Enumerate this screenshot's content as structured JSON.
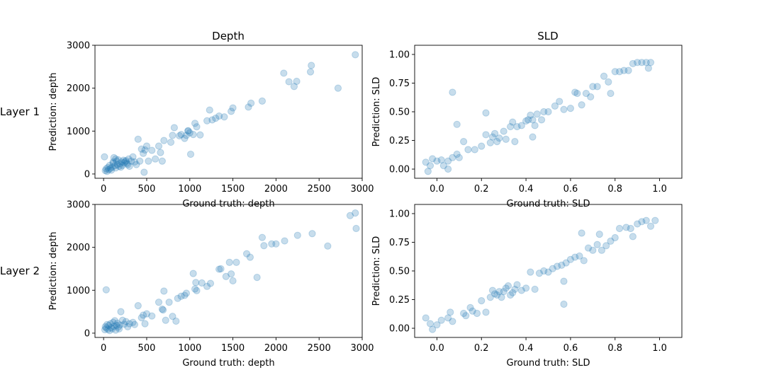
{
  "figure": {
    "column_titles": [
      "Depth",
      "SLD"
    ],
    "row_labels": [
      "Layer 1",
      "Layer 2"
    ],
    "point_color": "#1f77b4"
  },
  "chart_data": [
    {
      "type": "scatter",
      "row": 0,
      "col": 0,
      "title": "Depth",
      "xlabel": "Ground truth: depth",
      "ylabel": "Prediction: depth",
      "xlim": [
        -100,
        3000
      ],
      "ylim": [
        -100,
        3000
      ],
      "xticks": [
        0,
        500,
        1000,
        1500,
        2000,
        2500,
        3000
      ],
      "yticks": [
        0,
        1000,
        2000,
        3000
      ],
      "x": [
        20,
        30,
        40,
        50,
        60,
        70,
        80,
        90,
        100,
        110,
        120,
        130,
        140,
        150,
        160,
        170,
        180,
        190,
        200,
        210,
        220,
        230,
        240,
        250,
        260,
        270,
        280,
        290,
        300,
        320,
        340,
        360,
        380,
        400,
        420,
        440,
        460,
        480,
        500,
        520,
        560,
        600,
        640,
        660,
        680,
        700,
        780,
        800,
        820,
        880,
        900,
        940,
        960,
        980,
        1000,
        1040,
        1060,
        1080,
        1120,
        1200,
        1230,
        1260,
        1300,
        1340,
        1400,
        1480,
        1500,
        1680,
        1710,
        1840,
        2090,
        2150,
        2210,
        2240,
        2400,
        2410,
        2720,
        2920,
        10,
        110,
        140,
        980,
        1010,
        470
      ],
      "y": [
        80,
        120,
        60,
        150,
        100,
        200,
        130,
        90,
        160,
        250,
        380,
        190,
        140,
        300,
        220,
        330,
        180,
        240,
        160,
        280,
        200,
        320,
        260,
        290,
        310,
        250,
        220,
        350,
        180,
        300,
        400,
        280,
        220,
        810,
        300,
        580,
        480,
        560,
        650,
        300,
        550,
        350,
        650,
        500,
        300,
        780,
        740,
        900,
        1080,
        890,
        920,
        830,
        900,
        1000,
        960,
        920,
        1180,
        1100,
        910,
        1240,
        1490,
        1260,
        1300,
        1350,
        1330,
        1460,
        1540,
        1560,
        1650,
        1700,
        2350,
        2150,
        2040,
        2160,
        2380,
        2530,
        2000,
        2780,
        400,
        280,
        350,
        1010,
        460,
        40
      ]
    },
    {
      "type": "scatter",
      "row": 0,
      "col": 1,
      "title": "SLD",
      "xlabel": "Ground truth: SLD",
      "ylabel": "Prediction: SLD",
      "xlim": [
        -0.1,
        1.1
      ],
      "ylim": [
        -0.08,
        1.08
      ],
      "xticks": [
        0.0,
        0.2,
        0.4,
        0.6,
        0.8,
        1.0
      ],
      "yticks": [
        0.0,
        0.25,
        0.5,
        0.75,
        1.0
      ],
      "x": [
        -0.05,
        -0.04,
        -0.03,
        -0.02,
        0.0,
        0.02,
        0.03,
        0.05,
        0.07,
        0.09,
        0.1,
        0.12,
        0.14,
        0.17,
        0.2,
        0.22,
        0.24,
        0.25,
        0.26,
        0.27,
        0.28,
        0.3,
        0.31,
        0.33,
        0.34,
        0.35,
        0.36,
        0.38,
        0.4,
        0.41,
        0.42,
        0.43,
        0.44,
        0.45,
        0.47,
        0.48,
        0.5,
        0.53,
        0.55,
        0.57,
        0.6,
        0.62,
        0.63,
        0.65,
        0.67,
        0.69,
        0.7,
        0.72,
        0.75,
        0.77,
        0.78,
        0.8,
        0.82,
        0.84,
        0.86,
        0.88,
        0.9,
        0.92,
        0.94,
        0.95,
        0.96,
        0.07,
        0.09,
        0.22,
        0.43,
        0.05
      ],
      "y": [
        0.06,
        -0.02,
        0.03,
        0.09,
        0.07,
        0.08,
        0.03,
        0.07,
        0.1,
        0.13,
        0.1,
        0.24,
        0.17,
        0.17,
        0.2,
        0.3,
        0.23,
        0.28,
        0.31,
        0.24,
        0.27,
        0.33,
        0.26,
        0.37,
        0.41,
        0.24,
        0.37,
        0.38,
        0.42,
        0.43,
        0.47,
        0.43,
        0.38,
        0.48,
        0.43,
        0.5,
        0.5,
        0.55,
        0.59,
        0.52,
        0.53,
        0.67,
        0.66,
        0.56,
        0.66,
        0.63,
        0.72,
        0.72,
        0.81,
        0.76,
        0.66,
        0.85,
        0.85,
        0.86,
        0.86,
        0.92,
        0.93,
        0.93,
        0.93,
        0.88,
        0.93,
        0.67,
        0.39,
        0.49,
        0.28,
        0.0
      ]
    },
    {
      "type": "scatter",
      "row": 1,
      "col": 0,
      "title": "",
      "xlabel": "Ground truth: depth",
      "ylabel": "Prediction: depth",
      "xlim": [
        -100,
        3000
      ],
      "ylim": [
        -100,
        3000
      ],
      "xticks": [
        0,
        500,
        1000,
        1500,
        2000,
        2500,
        3000
      ],
      "yticks": [
        0,
        1000,
        2000,
        3000
      ],
      "x": [
        15,
        20,
        30,
        40,
        50,
        60,
        70,
        80,
        90,
        100,
        110,
        120,
        130,
        140,
        150,
        160,
        170,
        180,
        190,
        200,
        220,
        240,
        260,
        280,
        300,
        340,
        360,
        400,
        440,
        460,
        480,
        500,
        560,
        640,
        680,
        700,
        720,
        760,
        800,
        840,
        860,
        900,
        940,
        960,
        1040,
        1060,
        1080,
        1140,
        1200,
        1240,
        1340,
        1360,
        1420,
        1460,
        1480,
        1500,
        1540,
        1660,
        1700,
        1780,
        1840,
        1860,
        1950,
        2000,
        2100,
        2250,
        2420,
        2600,
        2860,
        2920,
        2930,
        30,
        690,
        1070
      ],
      "y": [
        80,
        150,
        120,
        200,
        90,
        180,
        60,
        220,
        130,
        100,
        250,
        160,
        290,
        70,
        180,
        230,
        140,
        100,
        190,
        500,
        300,
        210,
        270,
        150,
        220,
        250,
        200,
        640,
        360,
        420,
        220,
        450,
        400,
        720,
        560,
        980,
        300,
        720,
        390,
        280,
        810,
        860,
        880,
        930,
        1390,
        1030,
        990,
        1170,
        1090,
        1160,
        1490,
        1500,
        1320,
        1650,
        1380,
        1220,
        1650,
        1850,
        1770,
        1300,
        2230,
        2040,
        2080,
        2080,
        2150,
        2280,
        2320,
        2030,
        2740,
        2800,
        2440,
        1010,
        540,
        1180
      ]
    },
    {
      "type": "scatter",
      "row": 1,
      "col": 1,
      "title": "",
      "xlabel": "Ground truth: SLD",
      "ylabel": "Prediction: SLD",
      "xlim": [
        -0.1,
        1.1
      ],
      "ylim": [
        -0.08,
        1.08
      ],
      "xticks": [
        0.0,
        0.2,
        0.4,
        0.6,
        0.8,
        1.0
      ],
      "yticks": [
        0.0,
        0.25,
        0.5,
        0.75,
        1.0
      ],
      "x": [
        -0.05,
        -0.03,
        -0.02,
        0.0,
        0.02,
        0.05,
        0.06,
        0.07,
        0.12,
        0.13,
        0.15,
        0.16,
        0.18,
        0.2,
        0.22,
        0.24,
        0.25,
        0.26,
        0.27,
        0.28,
        0.29,
        0.3,
        0.31,
        0.32,
        0.33,
        0.34,
        0.35,
        0.36,
        0.38,
        0.4,
        0.42,
        0.44,
        0.46,
        0.48,
        0.5,
        0.52,
        0.54,
        0.56,
        0.57,
        0.58,
        0.6,
        0.62,
        0.64,
        0.66,
        0.68,
        0.7,
        0.72,
        0.73,
        0.74,
        0.76,
        0.78,
        0.8,
        0.82,
        0.85,
        0.87,
        0.88,
        0.9,
        0.92,
        0.94,
        0.96,
        0.98,
        0.65,
        0.57
      ],
      "y": [
        0.09,
        0.04,
        -0.01,
        0.03,
        0.07,
        0.09,
        0.14,
        0.06,
        0.13,
        0.11,
        0.18,
        0.15,
        0.13,
        0.24,
        0.14,
        0.27,
        0.33,
        0.3,
        0.29,
        0.32,
        0.27,
        0.32,
        0.35,
        0.37,
        0.29,
        0.31,
        0.34,
        0.38,
        0.33,
        0.35,
        0.49,
        0.34,
        0.48,
        0.5,
        0.49,
        0.52,
        0.54,
        0.55,
        0.41,
        0.57,
        0.6,
        0.62,
        0.63,
        0.59,
        0.7,
        0.68,
        0.73,
        0.82,
        0.68,
        0.72,
        0.76,
        0.79,
        0.87,
        0.88,
        0.87,
        0.8,
        0.91,
        0.93,
        0.94,
        0.89,
        0.94,
        0.83,
        0.21
      ]
    }
  ]
}
